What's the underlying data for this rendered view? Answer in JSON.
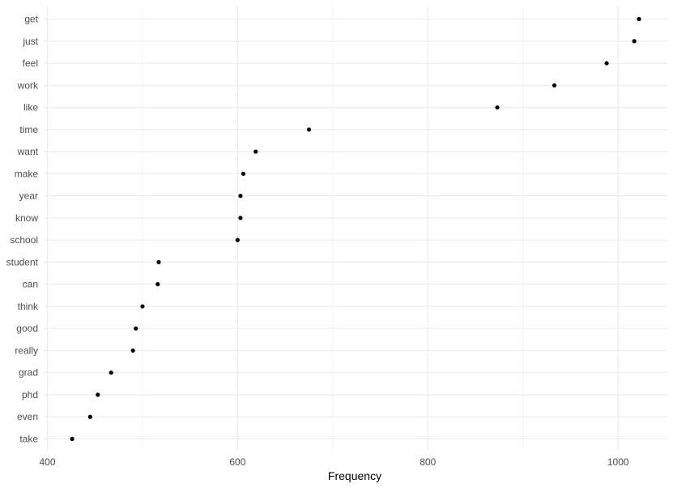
{
  "chart_data": {
    "type": "scatter",
    "xlabel": "Frequency",
    "ylabel": "",
    "xlim": [
      400,
      1025
    ],
    "xticks": [
      400,
      600,
      800,
      1000
    ],
    "grid": true,
    "categories": [
      "get",
      "just",
      "feel",
      "work",
      "like",
      "time",
      "want",
      "make",
      "year",
      "know",
      "school",
      "student",
      "can",
      "think",
      "good",
      "really",
      "grad",
      "phd",
      "even",
      "take"
    ],
    "values": [
      1022,
      1017,
      988,
      933,
      873,
      675,
      619,
      606,
      603,
      603,
      600,
      517,
      516,
      500,
      493,
      490,
      467,
      453,
      445,
      426
    ],
    "point_color": "#000000",
    "grid_color": "#ebebeb"
  }
}
